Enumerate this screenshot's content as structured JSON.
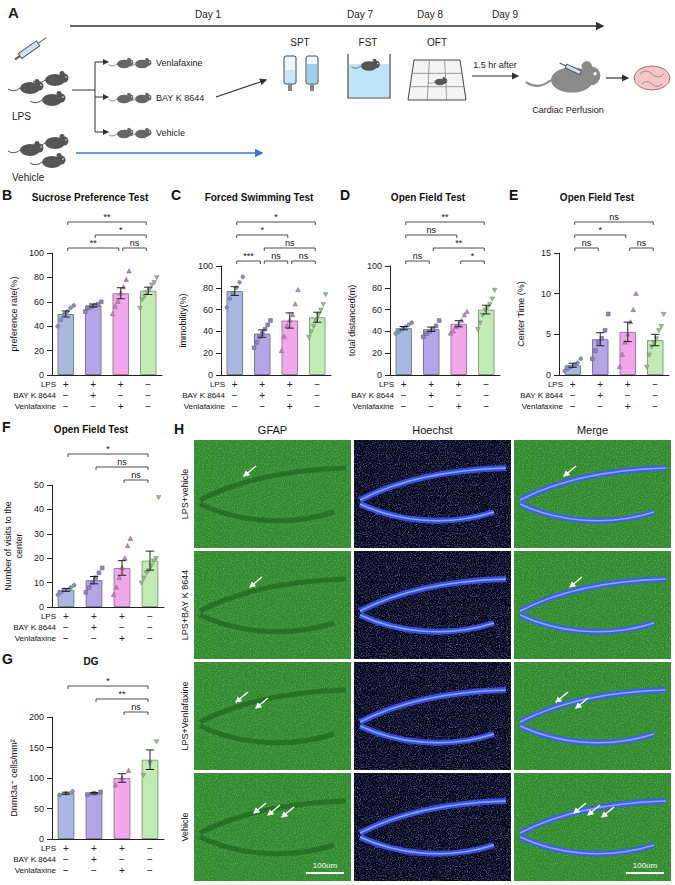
{
  "panel_a": {
    "letter": "A",
    "days": [
      "Day 1",
      "Day 7",
      "Day 8",
      "Day 9"
    ],
    "lps": "LPS",
    "vehicle": "Vehicle",
    "treatments": [
      "Venlafaxine",
      "BAY K 8644",
      "Vehicle"
    ],
    "tests": [
      "SPT",
      "FST",
      "OFT"
    ],
    "delay": "1.5 hr after",
    "perfusion": "Cardiac Perfusion"
  },
  "treatments": [
    {
      "name": "LPS",
      "signs": [
        "+",
        "+",
        "+",
        "−"
      ]
    },
    {
      "name": "BAY K 8644",
      "signs": [
        "−",
        "+",
        "−",
        "−"
      ]
    },
    {
      "name": "Venlafaxine",
      "signs": [
        "−",
        "−",
        "+",
        "−"
      ]
    }
  ],
  "chart_data": [
    {
      "panel": "B",
      "type": "bar",
      "title": "Sucrose Preference Test",
      "y_label": "preference rate(%)",
      "categories": [
        null,
        null,
        null,
        null
      ],
      "values": [
        50,
        57,
        67,
        69
      ],
      "errors": [
        2.5,
        1.2,
        4.5,
        3
      ],
      "points": [
        [
          40,
          45,
          50,
          52,
          55,
          57
        ],
        [
          52,
          55,
          56,
          57,
          58,
          60
        ],
        [
          50,
          56,
          60,
          67,
          72,
          78,
          85
        ],
        [
          55,
          62,
          65,
          68,
          70,
          74,
          76,
          80
        ]
      ],
      "colors": [
        "#a9b8e0",
        "#b4a6e6",
        "#f0a8ea",
        "#c2eab4"
      ],
      "ylim": [
        0,
        100
      ],
      "yticks": [
        0,
        20,
        40,
        60,
        80,
        100
      ],
      "grid": false,
      "significance": [
        {
          "groups": [
            0,
            3
          ],
          "label": "**"
        },
        {
          "groups": [
            0,
            2
          ],
          "label": "**"
        },
        {
          "groups": [
            1,
            3
          ],
          "label": "*"
        },
        {
          "groups": [
            2,
            3
          ],
          "label": "ns"
        }
      ]
    },
    {
      "panel": "C",
      "type": "bar",
      "title": "Forced Swimming Test",
      "y_label": "immobility(%)",
      "categories": [
        null,
        null,
        null,
        null
      ],
      "values": [
        77,
        38,
        50,
        53
      ],
      "errors": [
        4,
        3.4,
        7,
        4.6
      ],
      "points": [
        [
          62,
          70,
          75,
          80,
          85,
          90
        ],
        [
          25,
          30,
          35,
          38,
          42,
          46,
          50
        ],
        [
          22,
          35,
          45,
          50,
          55,
          65,
          78
        ],
        [
          35,
          40,
          45,
          50,
          55,
          60,
          65,
          74
        ]
      ],
      "colors": [
        "#a9b8e0",
        "#b4a6e6",
        "#f0a8ea",
        "#c2eab4"
      ],
      "ylim": [
        0,
        100
      ],
      "yticks": [
        0,
        20,
        40,
        60,
        80,
        100
      ],
      "grid": false,
      "significance": [
        {
          "groups": [
            0,
            3
          ],
          "label": "*"
        },
        {
          "groups": [
            1,
            3
          ],
          "label": "ns"
        },
        {
          "groups": [
            0,
            2
          ],
          "label": "*"
        },
        {
          "groups": [
            2,
            3
          ],
          "label": "ns"
        },
        {
          "groups": [
            0,
            1
          ],
          "label": "***"
        },
        {
          "groups": [
            1,
            2
          ],
          "label": "ns"
        }
      ]
    },
    {
      "panel": "D",
      "type": "bar",
      "title": "Open Field Test",
      "y_label": "total distanced(m)",
      "categories": [
        null,
        null,
        null,
        null
      ],
      "values": [
        43,
        42,
        47,
        60
      ],
      "errors": [
        1.5,
        2,
        2.8,
        4
      ],
      "points": [
        [
          38,
          40,
          42,
          44,
          46,
          48
        ],
        [
          35,
          38,
          40,
          42,
          45,
          50
        ],
        [
          38,
          40,
          44,
          46,
          50,
          55,
          58
        ],
        [
          42,
          48,
          55,
          60,
          62,
          65,
          70,
          78
        ]
      ],
      "colors": [
        "#a9b8e0",
        "#b4a6e6",
        "#f0a8ea",
        "#c2eab4"
      ],
      "ylim": [
        0,
        100
      ],
      "yticks": [
        0,
        20,
        40,
        60,
        80,
        100
      ],
      "grid": false,
      "significance": [
        {
          "groups": [
            0,
            3
          ],
          "label": "**"
        },
        {
          "groups": [
            1,
            3
          ],
          "label": "**"
        },
        {
          "groups": [
            0,
            2
          ],
          "label": "ns"
        },
        {
          "groups": [
            0,
            1
          ],
          "label": "ns"
        },
        {
          "groups": [
            2,
            3
          ],
          "label": "*"
        }
      ]
    },
    {
      "panel": "E",
      "type": "bar",
      "title": "Open Field Test",
      "y_label": "Center Time (%)",
      "categories": [
        null,
        null,
        null,
        null
      ],
      "values": [
        1.2,
        4.4,
        5.3,
        4.3
      ],
      "errors": [
        0.25,
        0.8,
        1.2,
        0.7
      ],
      "points": [
        [
          0.5,
          0.8,
          1.0,
          1.2,
          1.5,
          2.0
        ],
        [
          2.0,
          3.0,
          4.0,
          4.5,
          5.5,
          7.5
        ],
        [
          1.0,
          2.5,
          4.0,
          5.0,
          6.5,
          8.0,
          10.0
        ],
        [
          1.0,
          2.5,
          3.5,
          4.0,
          4.5,
          5.5,
          6.0,
          7.5
        ]
      ],
      "colors": [
        "#a9b8e0",
        "#b4a6e6",
        "#f0a8ea",
        "#c2eab4"
      ],
      "ylim": [
        0,
        15
      ],
      "yticks": [
        0,
        5,
        10,
        15
      ],
      "grid": false,
      "significance": [
        {
          "groups": [
            0,
            3
          ],
          "label": "ns"
        },
        {
          "groups": [
            0,
            2
          ],
          "label": "*"
        },
        {
          "groups": [
            0,
            1
          ],
          "label": "ns"
        },
        {
          "groups": [
            2,
            3
          ],
          "label": "ns"
        }
      ]
    },
    {
      "panel": "F",
      "type": "bar",
      "title": "Open Field Test",
      "y_label": "Number of visits to the center",
      "categories": [
        null,
        null,
        null,
        null
      ],
      "values": [
        7,
        11,
        16,
        19
      ],
      "errors": [
        0.6,
        1.5,
        3,
        3.9
      ],
      "points": [
        [
          5,
          6,
          7,
          7,
          8,
          9
        ],
        [
          6,
          8,
          10,
          12,
          14,
          16
        ],
        [
          5,
          8,
          12,
          16,
          20,
          25,
          28
        ],
        [
          10,
          12,
          14,
          15,
          17,
          19,
          20,
          45
        ]
      ],
      "colors": [
        "#a9b8e0",
        "#b4a6e6",
        "#f0a8ea",
        "#c2eab4"
      ],
      "ylim": [
        0,
        50
      ],
      "yticks": [
        0,
        10,
        20,
        30,
        40,
        50
      ],
      "grid": false,
      "significance": [
        {
          "groups": [
            0,
            3
          ],
          "label": "*"
        },
        {
          "groups": [
            1,
            3
          ],
          "label": "ns"
        },
        {
          "groups": [
            2,
            3
          ],
          "label": "ns"
        }
      ]
    },
    {
      "panel": "G",
      "type": "bar",
      "title": "DG",
      "y_label": "Dnmt3a⁺ cells/mm²",
      "categories": [
        null,
        null,
        null,
        null
      ],
      "values": [
        75,
        75,
        100,
        130
      ],
      "errors": [
        1.7,
        1.2,
        7,
        16
      ],
      "points": [
        [
          72,
          75,
          78
        ],
        [
          73,
          75,
          77
        ],
        [
          88,
          100,
          112
        ],
        [
          105,
          125,
          160
        ]
      ],
      "colors": [
        "#a9b8e0",
        "#b4a6e6",
        "#f0a8ea",
        "#c2eab4"
      ],
      "ylim": [
        0,
        200
      ],
      "yticks": [
        0,
        50,
        100,
        150,
        200
      ],
      "grid": false,
      "significance": [
        {
          "groups": [
            0,
            3
          ],
          "label": "*"
        },
        {
          "groups": [
            1,
            3
          ],
          "label": "**"
        },
        {
          "groups": [
            2,
            3
          ],
          "label": "ns"
        }
      ]
    }
  ],
  "panel_h": {
    "letter": "H",
    "columns": [
      "GFAP",
      "Hoechst",
      "Merge"
    ],
    "rows": [
      "LPS+vehicle",
      "LPS+BAY K 8644",
      "LPS+Venlafaxine",
      "Vehicle"
    ],
    "scale_bar": "100um"
  }
}
